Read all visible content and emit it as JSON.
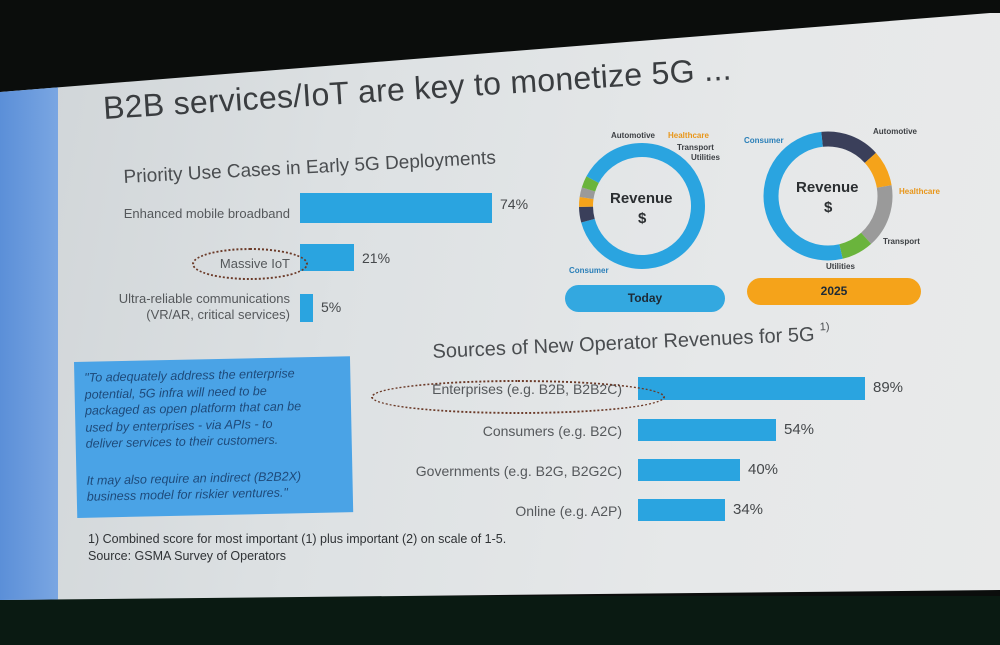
{
  "title": "B2B services/IoT are key to monetize 5G ...",
  "chart_data": [
    {
      "type": "bar",
      "orientation": "horizontal",
      "title": "Priority Use Cases in Early 5G Deployments",
      "categories": [
        "Enhanced mobile broadband",
        "Massive IoT",
        "Ultra-reliable communications (VR/AR, critical services)"
      ],
      "category_lines": [
        [
          "Enhanced mobile broadband"
        ],
        [
          "Massive IoT"
        ],
        [
          "Ultra-reliable communications",
          "(VR/AR, critical services)"
        ]
      ],
      "values": [
        74,
        21,
        5
      ],
      "value_labels": [
        "74%",
        "21%",
        "5%"
      ],
      "highlighted": "Massive IoT",
      "bar_color": "#2aa4e0"
    },
    {
      "type": "pie",
      "style": "donut",
      "center_label": [
        "Revenue",
        "$"
      ],
      "caption": "Today",
      "caption_color": "#33a8e0",
      "slices": [
        {
          "label": "Consumer",
          "value": 88,
          "color": "#2aa4e0"
        },
        {
          "label": "Automotive",
          "value": 4,
          "color": "#3a3f5a"
        },
        {
          "label": "Healthcare",
          "value": 2.5,
          "color": "#f5a31a"
        },
        {
          "label": "Transport",
          "value": 2.5,
          "color": "#9a9a9a"
        },
        {
          "label": "Utilities",
          "value": 3,
          "color": "#6ab43c"
        }
      ]
    },
    {
      "type": "pie",
      "style": "donut",
      "center_label": [
        "Revenue",
        "$"
      ],
      "caption": "2025",
      "caption_color": "#f5a31a",
      "slices": [
        {
          "label": "Automotive",
          "value": 15,
          "color": "#3a3f5a"
        },
        {
          "label": "Healthcare",
          "value": 9,
          "color": "#f5a31a"
        },
        {
          "label": "Transport",
          "value": 16,
          "color": "#9a9a9a"
        },
        {
          "label": "Utilities",
          "value": 8,
          "color": "#6ab43c"
        },
        {
          "label": "Consumer",
          "value": 52,
          "color": "#2aa4e0"
        }
      ]
    },
    {
      "type": "bar",
      "orientation": "horizontal",
      "title": "Sources of New Operator Revenues for 5G",
      "title_sup": "1)",
      "categories": [
        "Enterprises (e.g. B2B, B2B2C)",
        "Consumers (e.g. B2C)",
        "Governments (e.g. B2G, B2G2C)",
        "Online (e.g. A2P)"
      ],
      "values": [
        89,
        54,
        40,
        34
      ],
      "value_labels": [
        "89%",
        "54%",
        "40%",
        "34%"
      ],
      "highlighted": "Enterprises (e.g. B2B, B2B2C)",
      "bar_color": "#2aa4e0"
    }
  ],
  "quote": {
    "lines1": [
      "\"To adequately address the enterprise",
      "potential, 5G infra will need to be",
      "packaged as open platform that can be",
      "used by enterprises - via APIs - to",
      "deliver services to their customers."
    ],
    "lines2": [
      "It may also require an indirect (B2B2X)",
      "business model for riskier ventures.\""
    ]
  },
  "footnote": "1) Combined score for most important (1) plus important (2) on scale of 1-5.",
  "source": "Source: GSMA Survey of Operators"
}
